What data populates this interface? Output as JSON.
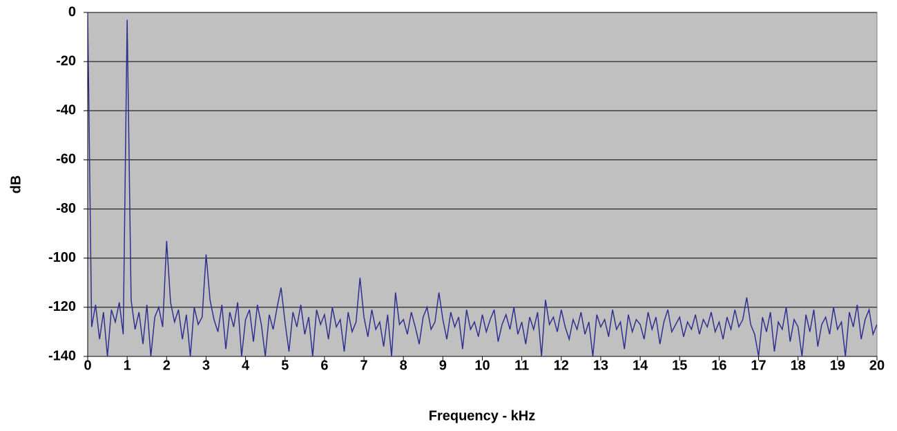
{
  "chart_data": {
    "type": "line",
    "xlabel": "Frequency - kHz",
    "ylabel": "dB",
    "xlim": [
      0,
      20
    ],
    "ylim": [
      -140,
      0
    ],
    "xticks": [
      0,
      1,
      2,
      3,
      4,
      5,
      6,
      7,
      8,
      9,
      10,
      11,
      12,
      13,
      14,
      15,
      16,
      17,
      18,
      19,
      20
    ],
    "yticks": [
      0,
      -20,
      -40,
      -60,
      -80,
      -100,
      -120,
      -140
    ],
    "grid": true,
    "color": "#2e2e8f",
    "background": "#c0c0c0",
    "x": [
      0,
      0.1,
      0.2,
      0.3,
      0.4,
      0.5,
      0.6,
      0.7,
      0.8,
      0.9,
      1,
      1.1,
      1.2,
      1.3,
      1.4,
      1.5,
      1.6,
      1.7,
      1.8,
      1.9,
      2,
      2.1,
      2.2,
      2.3,
      2.4,
      2.5,
      2.6,
      2.7,
      2.8,
      2.9,
      3,
      3.1,
      3.2,
      3.3,
      3.4,
      3.5,
      3.6,
      3.7,
      3.8,
      3.9,
      4,
      4.1,
      4.2,
      4.3,
      4.4,
      4.5,
      4.6,
      4.7,
      4.8,
      4.9,
      5,
      5.1,
      5.2,
      5.3,
      5.4,
      5.5,
      5.6,
      5.7,
      5.8,
      5.9,
      6,
      6.1,
      6.2,
      6.3,
      6.4,
      6.5,
      6.6,
      6.7,
      6.8,
      6.9,
      7,
      7.1,
      7.2,
      7.3,
      7.4,
      7.5,
      7.6,
      7.7,
      7.8,
      7.9,
      8,
      8.1,
      8.2,
      8.3,
      8.4,
      8.5,
      8.6,
      8.7,
      8.8,
      8.9,
      9,
      9.1,
      9.2,
      9.3,
      9.4,
      9.5,
      9.6,
      9.7,
      9.8,
      9.9,
      10,
      10.1,
      10.2,
      10.3,
      10.4,
      10.5,
      10.6,
      10.7,
      10.8,
      10.9,
      11,
      11.1,
      11.2,
      11.3,
      11.4,
      11.5,
      11.6,
      11.7,
      11.8,
      11.9,
      12,
      12.1,
      12.2,
      12.3,
      12.4,
      12.5,
      12.6,
      12.7,
      12.8,
      12.9,
      13,
      13.1,
      13.2,
      13.3,
      13.4,
      13.5,
      13.6,
      13.7,
      13.8,
      13.9,
      14,
      14.1,
      14.2,
      14.3,
      14.4,
      14.5,
      14.6,
      14.7,
      14.8,
      14.9,
      15,
      15.1,
      15.2,
      15.3,
      15.4,
      15.5,
      15.6,
      15.7,
      15.8,
      15.9,
      16,
      16.1,
      16.2,
      16.3,
      16.4,
      16.5,
      16.6,
      16.7,
      16.8,
      16.9,
      17,
      17.1,
      17.2,
      17.3,
      17.4,
      17.5,
      17.6,
      17.7,
      17.8,
      17.9,
      18,
      18.1,
      18.2,
      18.3,
      18.4,
      18.5,
      18.6,
      18.7,
      18.8,
      18.9,
      19,
      19.1,
      19.2,
      19.3,
      19.4,
      19.5,
      19.6,
      19.7,
      19.8,
      19.9,
      20
    ],
    "values": [
      0,
      -128,
      -119,
      -133,
      -122,
      -140,
      -121,
      -126,
      -118,
      -131,
      -3,
      -117,
      -129,
      -122,
      -135,
      -119,
      -140,
      -124,
      -120,
      -128,
      -93,
      -118,
      -126,
      -121,
      -133,
      -123,
      -140,
      -120,
      -127,
      -124,
      -98.5,
      -117,
      -125,
      -130,
      -119,
      -137,
      -122,
      -128,
      -118,
      -140,
      -125,
      -121,
      -134,
      -119,
      -127,
      -140,
      -123,
      -129,
      -120,
      -112,
      -126,
      -138,
      -122,
      -128,
      -119,
      -131,
      -124,
      -140,
      -121,
      -127,
      -123,
      -133,
      -120,
      -128,
      -125,
      -138,
      -122,
      -130,
      -126,
      -108,
      -124,
      -132,
      -121,
      -129,
      -126,
      -136,
      -123,
      -140,
      -114,
      -127,
      -125,
      -131,
      -122,
      -128,
      -135,
      -124,
      -120,
      -129,
      -126,
      -114,
      -125,
      -133,
      -122,
      -128,
      -124,
      -137,
      -121,
      -129,
      -126,
      -132,
      -123,
      -130,
      -125,
      -121,
      -134,
      -127,
      -123,
      -129,
      -120,
      -131,
      -126,
      -135,
      -124,
      -129,
      -122,
      -140,
      -117,
      -127,
      -124,
      -130,
      -121,
      -128,
      -133,
      -125,
      -129,
      -122,
      -131,
      -126,
      -140,
      -123,
      -128,
      -125,
      -132,
      -121,
      -129,
      -126,
      -137,
      -123,
      -130,
      -125,
      -127,
      -133,
      -122,
      -129,
      -124,
      -135,
      -126,
      -121,
      -130,
      -127,
      -124,
      -132,
      -126,
      -129,
      -123,
      -131,
      -125,
      -128,
      -122,
      -130,
      -126,
      -133,
      -124,
      -129,
      -121,
      -128,
      -125,
      -116,
      -127,
      -131,
      -140,
      -124,
      -130,
      -122,
      -138,
      -126,
      -129,
      -120,
      -134,
      -125,
      -128,
      -140,
      -123,
      -130,
      -121,
      -136,
      -127,
      -124,
      -131,
      -120,
      -129,
      -126,
      -140,
      -122,
      -128,
      -119,
      -133,
      -125,
      -121,
      -131,
      -127
    ]
  }
}
